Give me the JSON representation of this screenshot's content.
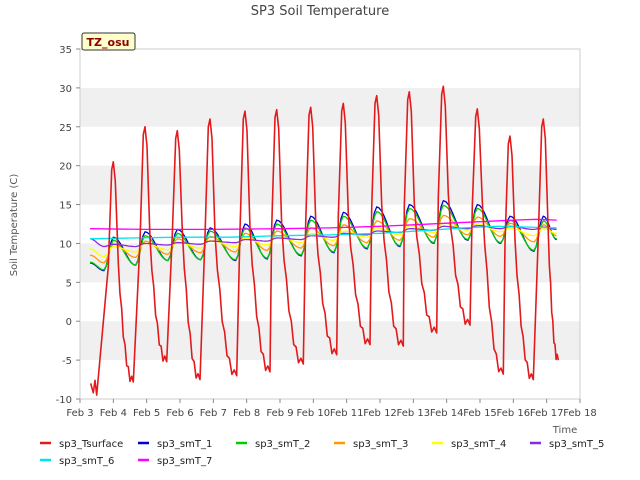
{
  "chart_data": {
    "type": "line",
    "title": "SP3 Soil Temperature",
    "xlabel": "Time",
    "ylabel": "Soil Temperature (C)",
    "badge": "TZ_osu",
    "xlim": [
      3.0,
      18.0
    ],
    "ylim": [
      -10,
      35
    ],
    "x_ticks": [
      3,
      4,
      5,
      6,
      7,
      8,
      9,
      10,
      11,
      12,
      13,
      14,
      15,
      16,
      17,
      18
    ],
    "x_tick_labels": [
      "Feb 3",
      "Feb 4",
      "Feb 5",
      "Feb 6",
      "Feb 7",
      "Feb 8",
      "Feb 9",
      "Feb 10",
      "Feb 11",
      "Feb 12",
      "Feb 13",
      "Feb 14",
      "Feb 15",
      "Feb 16",
      "Feb 17",
      "Feb 18"
    ],
    "y_ticks": [
      -10,
      -5,
      0,
      5,
      10,
      15,
      20,
      25,
      30,
      35
    ],
    "grid": "horizontal bands",
    "legend_position": "bottom",
    "daily_peak_x": [
      4.0,
      4.95,
      5.92,
      6.9,
      7.95,
      8.9,
      9.92,
      10.9,
      11.9,
      12.88,
      13.9,
      14.92,
      15.9,
      16.9
    ],
    "series": [
      {
        "name": "sp3_Tsurface",
        "color": "#e31a1c",
        "min_x": [
          3.5,
          4.6,
          5.6,
          6.6,
          7.7,
          8.7,
          9.7,
          10.7,
          11.7,
          12.7,
          13.7,
          14.7,
          15.7,
          16.6
        ],
        "min_y": [
          -9.5,
          -7.8,
          -5.2,
          -7.5,
          -7,
          -6.5,
          -5.5,
          -4.3,
          -3,
          -3.2,
          -1.5,
          -0.5,
          -6.8,
          -7.5
        ],
        "peak_y": [
          20.5,
          25,
          24.5,
          26,
          27,
          27.2,
          27.5,
          28,
          29,
          29.5,
          30.2,
          27.3,
          23.8,
          26
        ],
        "end_x": 17.35,
        "end_y": -5
      },
      {
        "name": "sp3_smT_1",
        "color": "#0000cc",
        "min_y": [
          6.5,
          7.2,
          7.8,
          7.9,
          7.8,
          8.0,
          8.4,
          8.8,
          9.3,
          9.6,
          10.0,
          10.4,
          10.0,
          9.0
        ],
        "peak_y": [
          10.8,
          11.5,
          11.8,
          12.0,
          12.5,
          13.0,
          13.5,
          14.0,
          14.7,
          15.0,
          15.5,
          15.0,
          13.5,
          13.5
        ],
        "end_y": 10.5
      },
      {
        "name": "sp3_smT_2",
        "color": "#00cc00",
        "min_y": [
          6.6,
          7.2,
          7.8,
          7.9,
          7.9,
          8.1,
          8.5,
          8.9,
          9.4,
          9.7,
          10.1,
          10.5,
          10.1,
          9.1
        ],
        "peak_y": [
          10.4,
          11.0,
          11.3,
          11.6,
          12.0,
          12.5,
          13.0,
          13.5,
          14.1,
          14.5,
          14.9,
          14.5,
          13.0,
          12.9
        ],
        "end_y": 10.6
      },
      {
        "name": "sp3_smT_3",
        "color": "#ff9900",
        "min_y": [
          7.5,
          8.2,
          8.6,
          8.8,
          8.9,
          9.1,
          9.4,
          9.7,
          10.1,
          10.4,
          10.8,
          11.1,
          10.9,
          10.2
        ],
        "peak_y": [
          9.9,
          10.3,
          10.6,
          10.9,
          11.3,
          11.6,
          12.0,
          12.4,
          12.9,
          13.2,
          13.6,
          13.4,
          12.6,
          12.4
        ],
        "end_y": 11.0
      },
      {
        "name": "sp3_smT_4",
        "color": "#ffff00",
        "min_y": [
          8.3,
          8.9,
          9.2,
          9.4,
          9.6,
          9.8,
          10.1,
          10.4,
          10.8,
          11.1,
          11.4,
          11.7,
          11.5,
          11.0
        ],
        "peak_y": [
          9.6,
          10.0,
          10.2,
          10.4,
          10.7,
          11.0,
          11.3,
          11.6,
          12.0,
          12.3,
          12.6,
          12.5,
          12.0,
          11.9
        ],
        "end_y": 11.3
      },
      {
        "name": "sp3_smT_5",
        "color": "#8a2be2",
        "min_y": [
          9.6,
          9.6,
          9.8,
          9.9,
          10.1,
          10.3,
          10.5,
          10.8,
          11.1,
          11.4,
          11.7,
          11.9,
          11.9,
          11.8
        ],
        "peak_y": [
          9.9,
          10.0,
          10.1,
          10.3,
          10.5,
          10.7,
          11.0,
          11.3,
          11.6,
          11.9,
          12.2,
          12.3,
          12.2,
          12.1
        ],
        "end_y": 11.8
      },
      {
        "name": "sp3_smT_6",
        "color": "#00e5ee",
        "x": [
          3.3,
          4.5,
          6.0,
          7.5,
          9.0,
          10.5,
          12.0,
          13.5,
          14.5,
          15.5,
          16.5,
          17.3
        ],
        "y": [
          10.6,
          10.7,
          10.8,
          10.8,
          11.0,
          11.1,
          11.3,
          11.7,
          12.0,
          12.2,
          12.1,
          12.0
        ]
      },
      {
        "name": "sp3_smT_7",
        "color": "#ff00ff",
        "x": [
          3.3,
          5.0,
          7.0,
          9.0,
          10.5,
          12.0,
          13.0,
          14.0,
          15.0,
          16.0,
          16.7,
          17.3
        ],
        "y": [
          11.9,
          11.8,
          11.8,
          11.9,
          12.0,
          12.2,
          12.4,
          12.6,
          12.8,
          13.0,
          13.1,
          13.0
        ]
      }
    ]
  }
}
